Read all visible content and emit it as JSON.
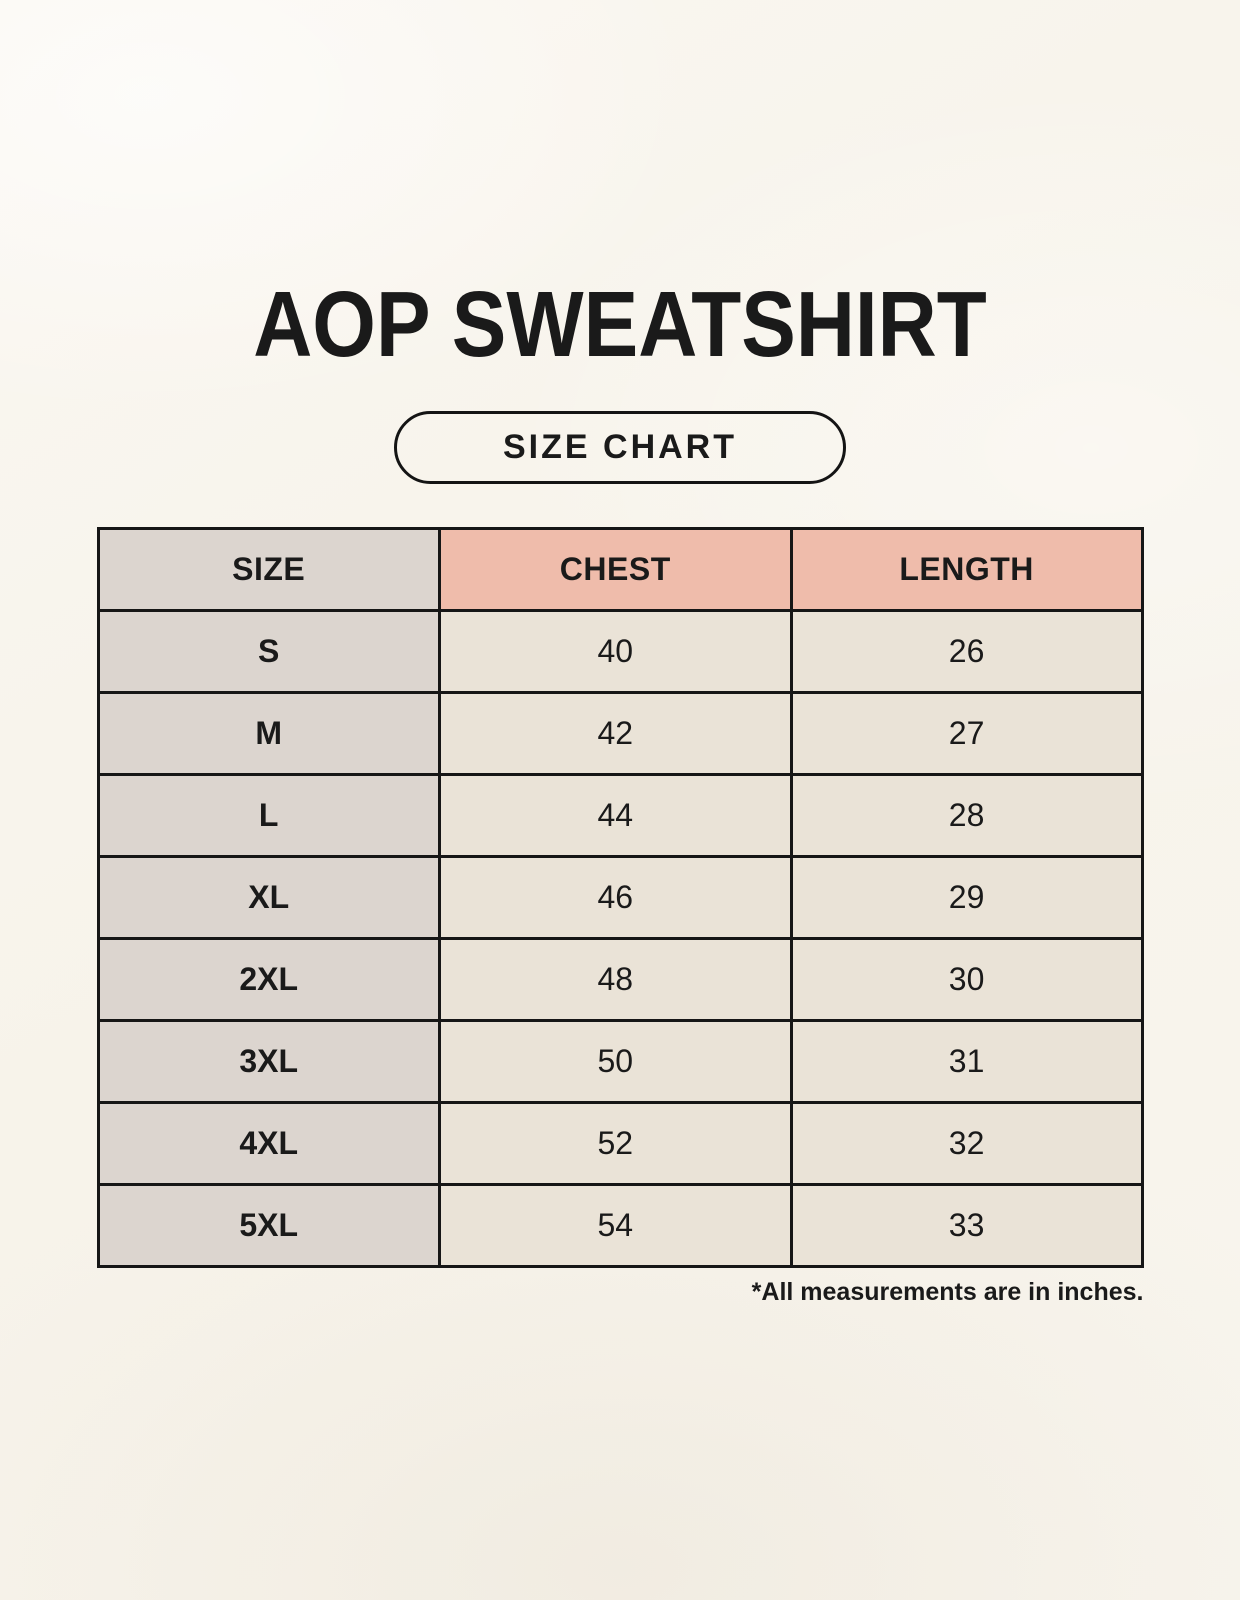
{
  "page": {
    "title": "AOP SWEATSHIRT",
    "badge_label": "SIZE CHART",
    "footnote": "*All measurements are in inches."
  },
  "table": {
    "headers": {
      "size": "SIZE",
      "chest": "CHEST",
      "length": "LENGTH"
    },
    "rows": [
      {
        "size": "S",
        "chest": "40",
        "length": "26"
      },
      {
        "size": "M",
        "chest": "42",
        "length": "27"
      },
      {
        "size": "L",
        "chest": "44",
        "length": "28"
      },
      {
        "size": "XL",
        "chest": "46",
        "length": "29"
      },
      {
        "size": "2XL",
        "chest": "48",
        "length": "30"
      },
      {
        "size": "3XL",
        "chest": "50",
        "length": "31"
      },
      {
        "size": "4XL",
        "chest": "52",
        "length": "32"
      },
      {
        "size": "5XL",
        "chest": "54",
        "length": "33"
      }
    ]
  },
  "colors": {
    "background": "#f8f5ee",
    "accent_pink": "#efbcab",
    "cell_gray": "#dcd5cf",
    "cell_cream": "#eae3d7",
    "border": "#161616",
    "text": "#1a1a1a"
  }
}
